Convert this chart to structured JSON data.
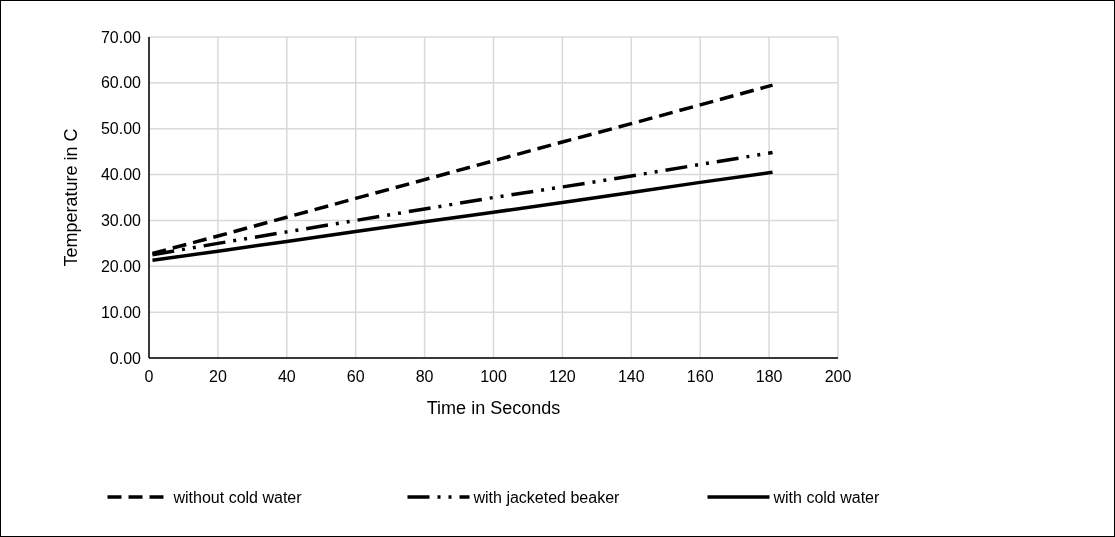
{
  "chart_data": {
    "type": "line",
    "xlabel": "Time in Seconds",
    "ylabel": "Temperature in C",
    "x": [
      1,
      20,
      40,
      60,
      80,
      100,
      120,
      140,
      160,
      181
    ],
    "series": [
      {
        "name": "without cold water",
        "color": "#000000",
        "line_style": "dashed",
        "values": [
          22.8,
          26.6,
          30.7,
          34.8,
          38.9,
          43.0,
          47.1,
          51.1,
          55.2,
          59.5
        ]
      },
      {
        "name": "with jacketed beaker",
        "color": "#000000",
        "line_style": "dashdot",
        "values": [
          22.5,
          25.0,
          27.5,
          30.0,
          32.5,
          35.0,
          37.3,
          39.7,
          42.2,
          44.8
        ]
      },
      {
        "name": "with cold water",
        "color": "#000000",
        "line_style": "solid",
        "values": [
          21.3,
          23.3,
          25.4,
          27.6,
          29.7,
          31.8,
          33.9,
          36.1,
          38.3,
          40.5
        ]
      }
    ],
    "xlim": [
      0,
      200
    ],
    "xticks": [
      0,
      20,
      40,
      60,
      80,
      100,
      120,
      140,
      160,
      180,
      200
    ],
    "ylim": [
      0,
      70
    ],
    "yticks": [
      {
        "value": 0,
        "label": "0.00"
      },
      {
        "value": 10,
        "label": "10.00"
      },
      {
        "value": 20,
        "label": "20.00"
      },
      {
        "value": 30,
        "label": "30.00"
      },
      {
        "value": 40,
        "label": "40.00"
      },
      {
        "value": 50,
        "label": "50.00"
      },
      {
        "value": 60,
        "label": "60.00"
      },
      {
        "value": 70,
        "label": "70.00"
      }
    ],
    "grid": true,
    "legend": "bottom"
  }
}
